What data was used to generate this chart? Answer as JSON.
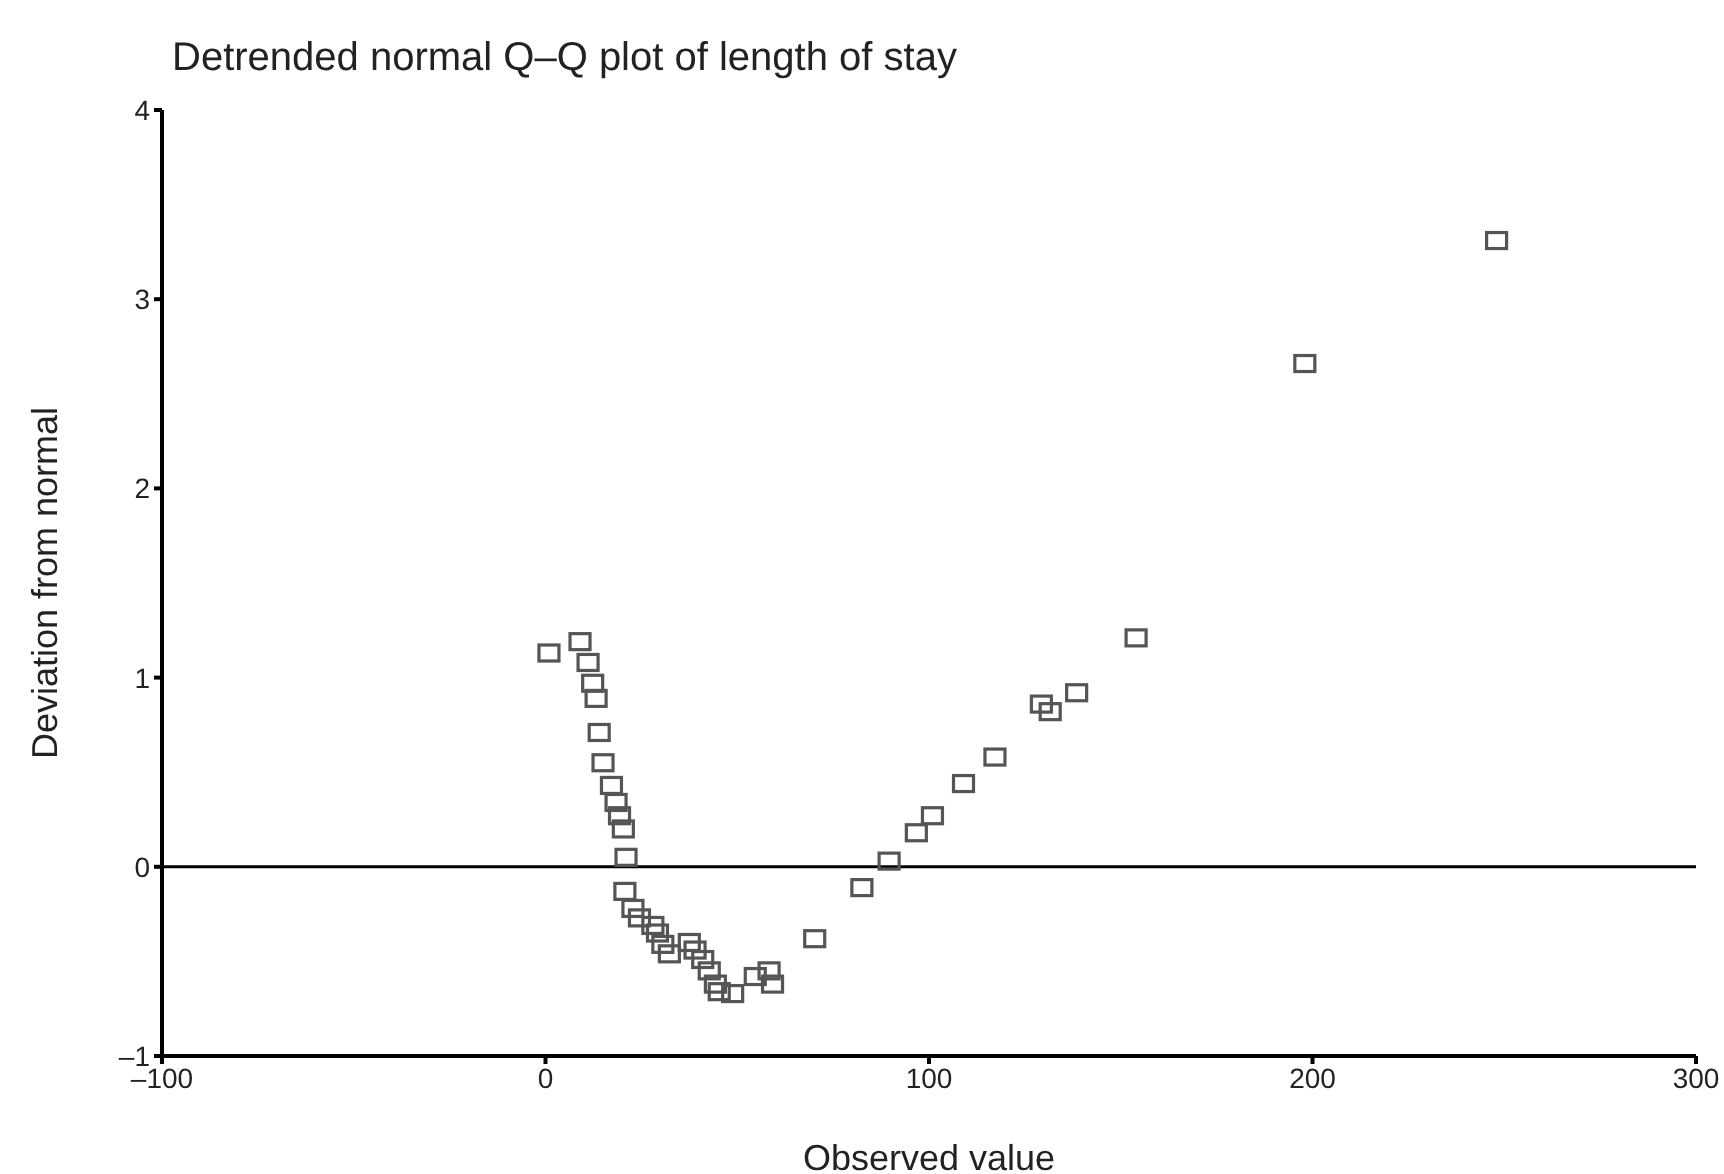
{
  "chart_data": {
    "type": "scatter",
    "title": "Detrended normal Q–Q plot of length of stay",
    "xlabel": "Observed value",
    "ylabel": "Deviation from normal",
    "x": [
      0.9,
      9,
      11.1,
      12.3,
      13.2,
      14,
      15,
      17.2,
      18.4,
      19.3,
      20.3,
      21,
      20.7,
      22.8,
      24.5,
      28,
      29.2,
      30.6,
      32.3,
      37.5,
      39,
      41,
      42.7,
      44.3,
      45.3,
      48.8,
      54.7,
      58.3,
      59.2,
      70.2,
      82.5,
      89.6,
      96.7,
      100.9,
      109,
      117.2,
      129.3,
      131.6,
      138.5,
      154,
      198,
      248
    ],
    "values": [
      1.13,
      1.19,
      1.08,
      0.97,
      0.89,
      0.71,
      0.55,
      0.43,
      0.34,
      0.27,
      0.2,
      0.05,
      -0.13,
      -0.22,
      -0.27,
      -0.31,
      -0.35,
      -0.41,
      -0.46,
      -0.4,
      -0.44,
      -0.49,
      -0.55,
      -0.62,
      -0.66,
      -0.67,
      -0.58,
      -0.55,
      -0.62,
      -0.38,
      -0.11,
      0.03,
      0.18,
      0.27,
      0.44,
      0.58,
      0.86,
      0.82,
      0.92,
      1.21,
      2.66,
      3.31
    ],
    "color": "#555555",
    "marker": "square",
    "grid": false,
    "legend": false,
    "xlim": [
      -100,
      300
    ],
    "xticks": [
      {
        "value": -100,
        "label": "–100"
      },
      0,
      100,
      200,
      300
    ],
    "ylim": [
      -1,
      4
    ],
    "yticks": [
      {
        "value": -1,
        "label": "–1"
      },
      0,
      1,
      2,
      3,
      4
    ],
    "ref_lines": [
      {
        "axis": "y",
        "value": 0,
        "color": "#000000"
      }
    ]
  }
}
